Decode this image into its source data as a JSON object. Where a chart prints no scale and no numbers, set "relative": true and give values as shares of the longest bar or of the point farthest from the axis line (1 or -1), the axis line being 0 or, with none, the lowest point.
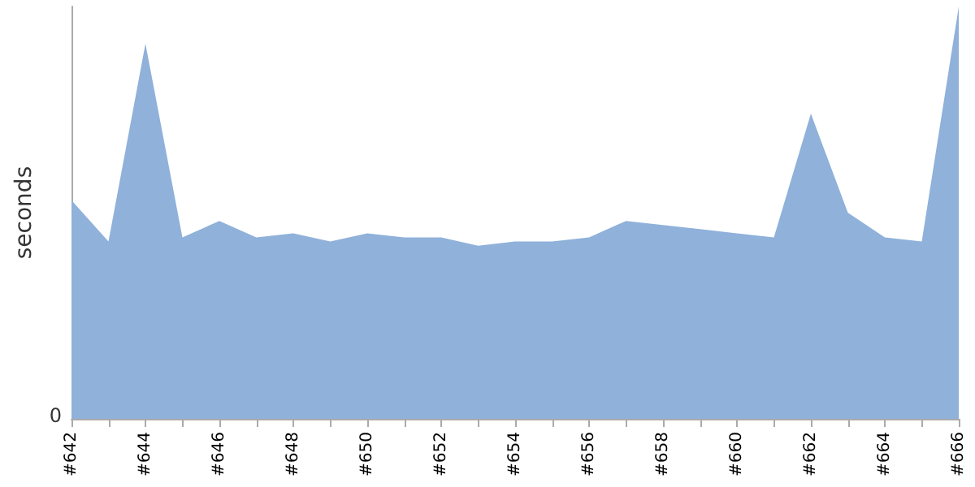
{
  "chart_data": {
    "type": "area",
    "ylabel": "seconds",
    "relative": true,
    "annotations": [
      "0"
    ],
    "categories": [
      "#642",
      null,
      "#644",
      null,
      "#646",
      null,
      "#648",
      null,
      "#650",
      null,
      "#652",
      null,
      "#654",
      null,
      "#656",
      null,
      "#658",
      null,
      "#660",
      null,
      "#662",
      null,
      "#664",
      null,
      "#666"
    ],
    "series": [
      {
        "color": "#8fb1da",
        "values": [
          0.53,
          0.43,
          0.91,
          0.44,
          0.48,
          0.44,
          0.45,
          0.43,
          0.45,
          0.44,
          0.44,
          0.42,
          0.43,
          0.43,
          0.44,
          0.48,
          0.47,
          0.46,
          0.45,
          0.44,
          0.74,
          0.5,
          0.44,
          0.43,
          1
        ]
      }
    ],
    "grid": false
  }
}
